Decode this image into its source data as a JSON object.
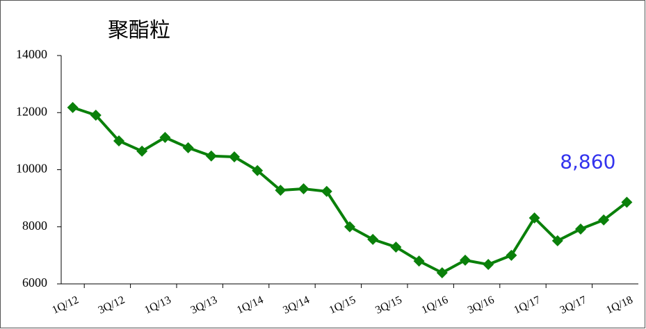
{
  "chart_data": {
    "type": "line",
    "title": "聚酯粒",
    "categories": [
      "1Q/12",
      null,
      "3Q/12",
      null,
      "1Q/13",
      null,
      "3Q/13",
      null,
      "1Q/14",
      null,
      "3Q/14",
      null,
      "1Q/15",
      null,
      "3Q/15",
      null,
      "1Q/16",
      null,
      "3Q/16",
      null,
      "1Q/17",
      null,
      "3Q/17",
      null,
      "1Q/18"
    ],
    "values": [
      12180,
      11910,
      11010,
      10650,
      11130,
      10770,
      10480,
      10450,
      9970,
      9280,
      9330,
      9240,
      8000,
      7560,
      7290,
      6800,
      6390,
      6830,
      6680,
      7000,
      8310,
      7510,
      7920,
      8240,
      8860
    ],
    "value_labels": [
      null,
      null,
      null,
      null,
      null,
      null,
      null,
      null,
      null,
      null,
      null,
      null,
      null,
      null,
      null,
      null,
      null,
      null,
      null,
      null,
      null,
      null,
      null,
      null,
      "8,860"
    ],
    "color": "#0a800a",
    "label_color": "#3333ee",
    "ylim": [
      6000,
      14000
    ],
    "yticks": [
      6000,
      8000,
      10000,
      12000,
      14000
    ],
    "grid": false
  }
}
